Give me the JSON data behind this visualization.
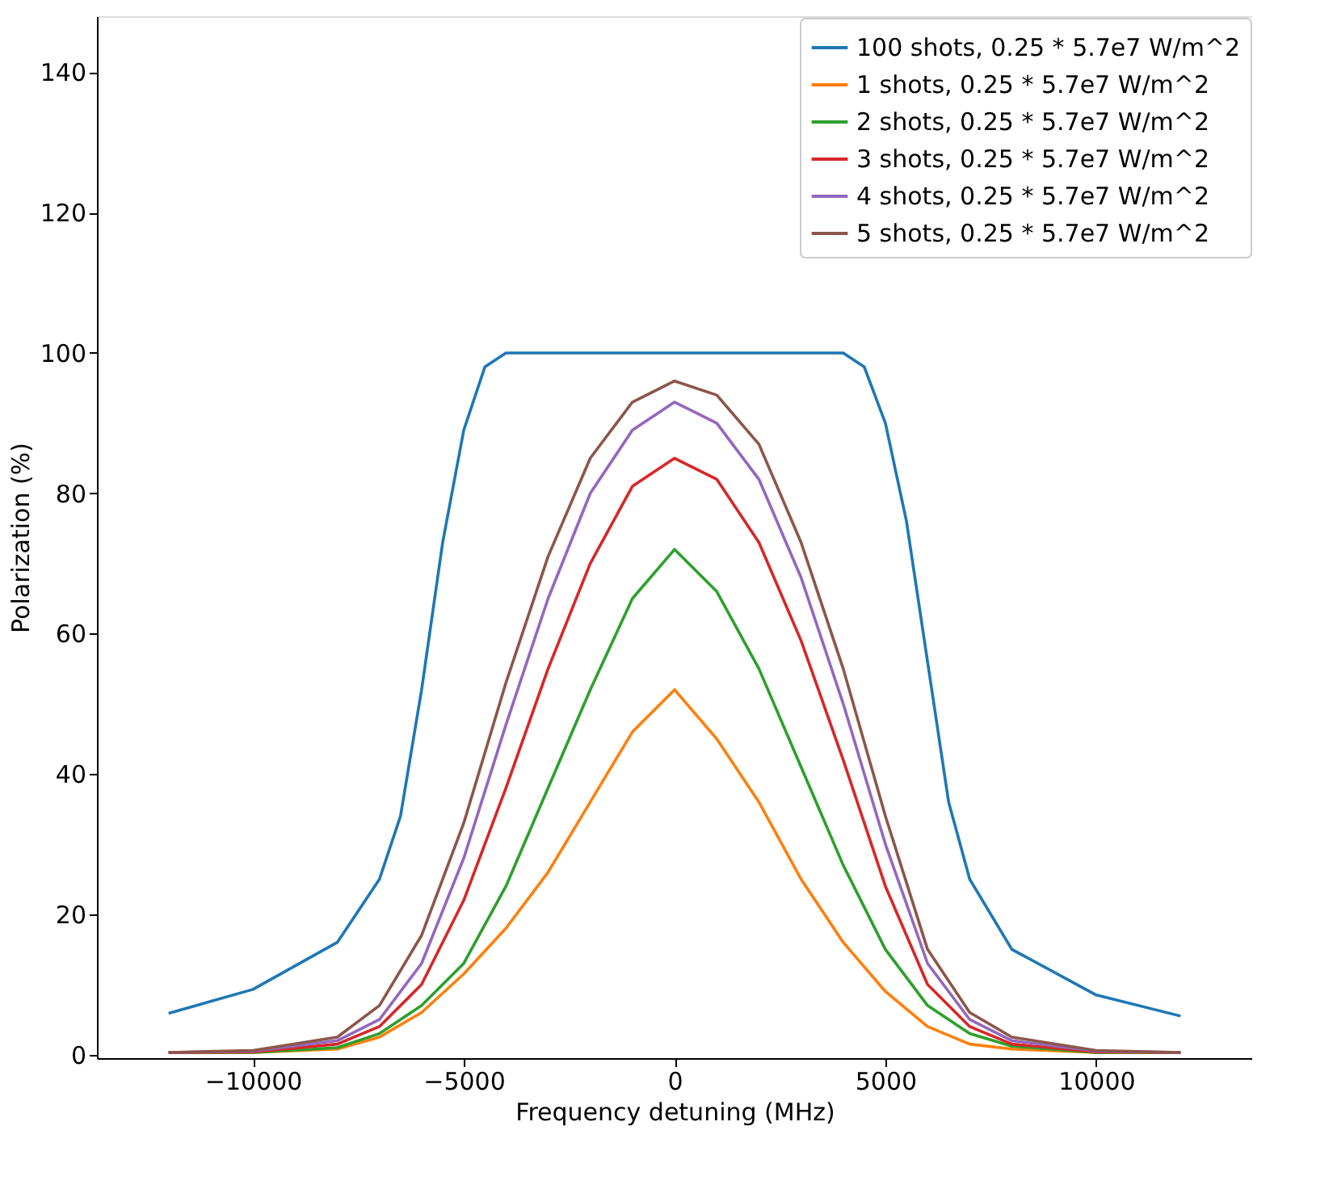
{
  "chart_data": {
    "type": "line",
    "xlabel": "Frequency detuning (MHz)",
    "ylabel": "Polarization (%)",
    "xlim": [
      -13700,
      13700
    ],
    "ylim": [
      -0.5,
      148
    ],
    "xticks": [
      -10000,
      -5000,
      0,
      5000,
      10000
    ],
    "yticks": [
      0,
      20,
      40,
      60,
      80,
      100,
      120,
      140
    ],
    "grid": false,
    "legend": "top right",
    "marker": "none",
    "line_style": "solid",
    "series": [
      {
        "name": "100 shots, 0.25 * 5.7e7 W/m^2",
        "color": "#1f77b4",
        "x": [
          -12000,
          -10000,
          -8000,
          -7000,
          -6500,
          -6000,
          -5500,
          -5000,
          -4500,
          -4000,
          0,
          4000,
          4500,
          5000,
          5500,
          6000,
          6500,
          7000,
          8000,
          10000,
          12000
        ],
        "values": [
          5.9,
          9.3,
          16,
          25,
          34,
          52,
          73,
          89,
          98,
          100,
          100,
          100,
          98,
          90,
          76,
          56,
          36,
          25,
          15,
          8.5,
          5.5
        ]
      },
      {
        "name": "1 shots, 0.25 * 5.7e7 W/m^2",
        "color": "#ff7f0e",
        "x": [
          -12000,
          -10000,
          -8000,
          -7000,
          -6000,
          -5000,
          -4000,
          -3000,
          -2000,
          -1000,
          0,
          1000,
          2000,
          3000,
          4000,
          5000,
          6000,
          7000,
          8000,
          10000,
          12000
        ],
        "values": [
          0.3,
          0.3,
          0.8,
          2.5,
          6,
          11.5,
          18,
          26,
          36,
          46,
          52,
          45,
          36,
          25,
          16,
          9,
          4,
          1.5,
          0.8,
          0.3,
          0.3
        ]
      },
      {
        "name": "2 shots, 0.25 * 5.7e7 W/m^2",
        "color": "#2ca02c",
        "x": [
          -12000,
          -10000,
          -8000,
          -7000,
          -6000,
          -5000,
          -4000,
          -3000,
          -2000,
          -1000,
          0,
          1000,
          2000,
          3000,
          4000,
          5000,
          6000,
          7000,
          8000,
          10000,
          12000
        ],
        "values": [
          0.3,
          0.3,
          1,
          3,
          7,
          13,
          24,
          38,
          52,
          65,
          72,
          66,
          55,
          41,
          27,
          15,
          7,
          3,
          1.2,
          0.3,
          0.3
        ]
      },
      {
        "name": "3 shots, 0.25 * 5.7e7 W/m^2",
        "color": "#d62728",
        "x": [
          -12000,
          -10000,
          -8000,
          -7000,
          -6000,
          -5000,
          -4000,
          -3000,
          -2000,
          -1000,
          0,
          1000,
          2000,
          3000,
          4000,
          5000,
          6000,
          7000,
          8000,
          10000,
          12000
        ],
        "values": [
          0.3,
          0.4,
          1.5,
          4,
          10,
          22,
          38,
          55,
          70,
          81,
          85,
          82,
          73,
          59,
          42,
          24,
          10,
          4,
          1.5,
          0.4,
          0.3
        ]
      },
      {
        "name": "4 shots, 0.25 * 5.7e7 W/m^2",
        "color": "#9467bd",
        "x": [
          -12000,
          -10000,
          -8000,
          -7000,
          -6000,
          -5000,
          -4000,
          -3000,
          -2000,
          -1000,
          0,
          1000,
          2000,
          3000,
          4000,
          5000,
          6000,
          7000,
          8000,
          10000,
          12000
        ],
        "values": [
          0.3,
          0.5,
          2,
          5,
          13,
          28,
          47,
          65,
          80,
          89,
          93,
          90,
          82,
          68,
          50,
          30,
          13,
          5,
          2,
          0.5,
          0.3
        ]
      },
      {
        "name": "5 shots, 0.25 * 5.7e7 W/m^2",
        "color": "#8c564b",
        "x": [
          -12000,
          -10000,
          -8000,
          -7000,
          -6000,
          -5000,
          -4000,
          -3000,
          -2000,
          -1000,
          0,
          1000,
          2000,
          3000,
          4000,
          5000,
          6000,
          7000,
          8000,
          10000,
          12000
        ],
        "values": [
          0.3,
          0.6,
          2.5,
          7,
          17,
          33,
          53,
          71,
          85,
          93,
          96,
          94,
          87,
          73,
          55,
          34,
          15,
          6,
          2.5,
          0.6,
          0.3
        ]
      }
    ]
  }
}
